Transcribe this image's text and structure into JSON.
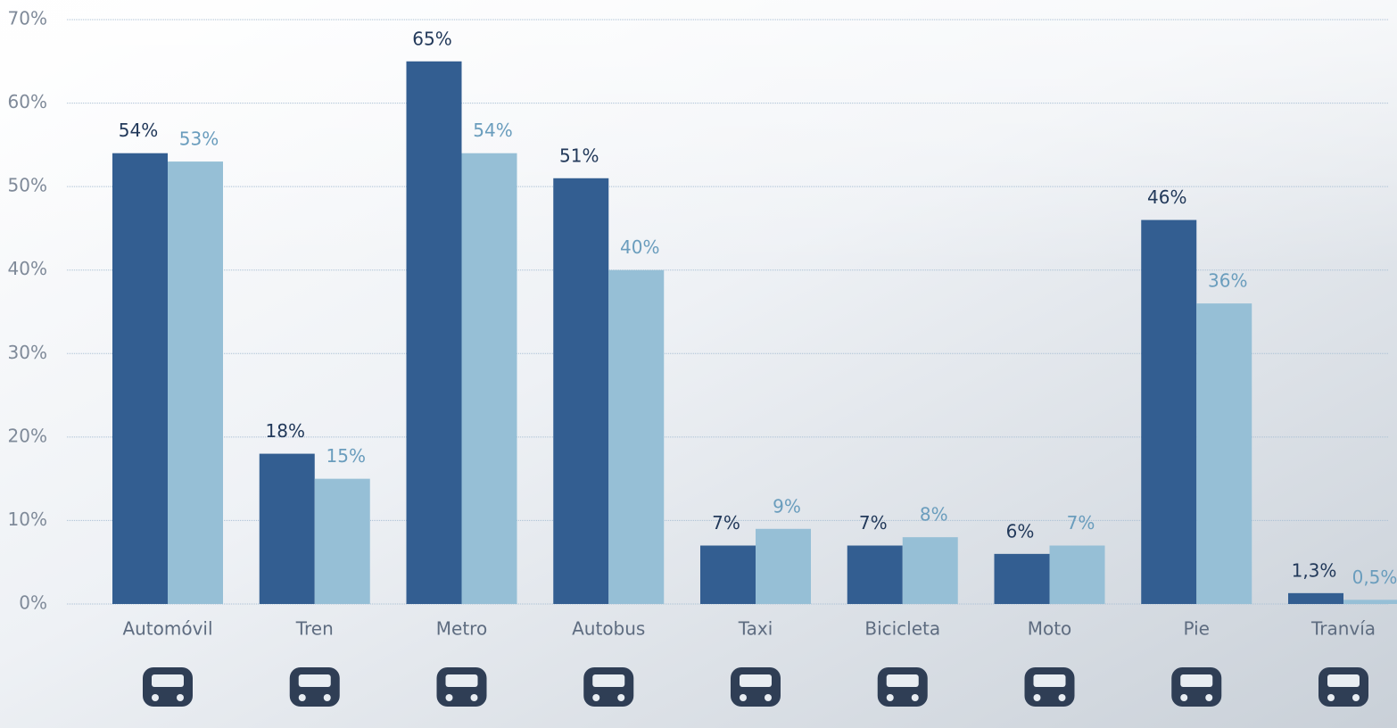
{
  "chart_data": {
    "type": "bar",
    "categories": [
      "Automóvil",
      "Tren",
      "Metro",
      "Autobus",
      "Taxi",
      "Bicicleta",
      "Moto",
      "Pie",
      "Tranvía"
    ],
    "series": [
      {
        "color": "#335e91",
        "values": [
          54,
          18,
          65,
          51,
          7,
          7,
          6,
          46,
          1.3
        ],
        "value_labels": [
          "54%",
          "18%",
          "65%",
          "51%",
          "7%",
          "7%",
          "6%",
          "46%",
          "1,3%"
        ]
      },
      {
        "color": "#96bfd6",
        "values": [
          53,
          15,
          54,
          40,
          9,
          8,
          7,
          36,
          0.5
        ],
        "value_labels": [
          "53%",
          "15%",
          "54%",
          "40%",
          "9%",
          "8%",
          "7%",
          "36%",
          "0,5%"
        ]
      }
    ],
    "ylim": [
      0,
      70
    ],
    "yticks": [
      {
        "value": 0,
        "label": "0%"
      },
      {
        "value": 10,
        "label": "10%"
      },
      {
        "value": 20,
        "label": "20%"
      },
      {
        "value": 30,
        "label": "30%"
      },
      {
        "value": 40,
        "label": "40%"
      },
      {
        "value": 50,
        "label": "50%"
      },
      {
        "value": 60,
        "label": "60%"
      },
      {
        "value": 70,
        "label": "70%"
      }
    ],
    "grid": true
  }
}
